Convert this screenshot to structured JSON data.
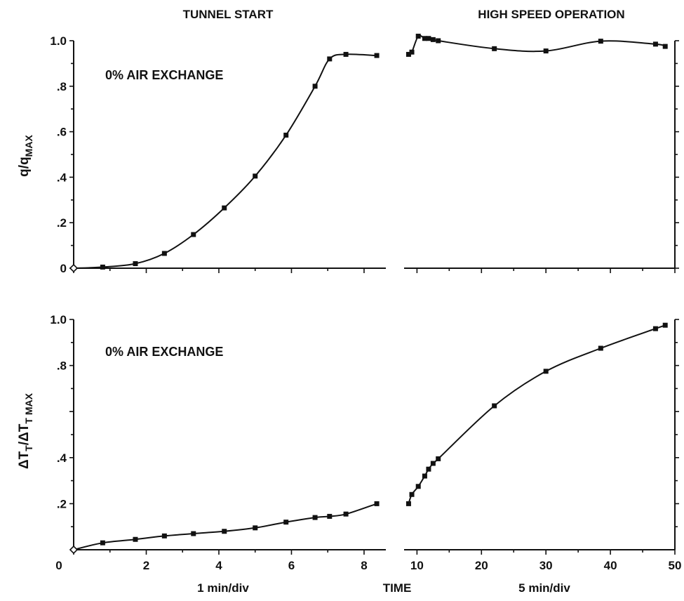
{
  "chart_data": [
    {
      "type": "line",
      "name": "top",
      "ylabel": "q/q",
      "ylabel_sub": "MAX",
      "annotation": "0% AIR EXCHANGE",
      "ylim": [
        0,
        1.0
      ],
      "yticks": [
        {
          "v": 0,
          "label": "0"
        },
        {
          "v": 0.2,
          "label": ".2"
        },
        {
          "v": 0.4,
          "label": ".4"
        },
        {
          "v": 0.6,
          "label": ".6"
        },
        {
          "v": 0.8,
          "label": ".8"
        },
        {
          "v": 1.0,
          "label": "1.0"
        }
      ],
      "left": {
        "xlim": [
          0,
          8.6
        ],
        "x": [
          0,
          0.8,
          1.7,
          2.5,
          3.3,
          4.15,
          5.0,
          5.85,
          6.65,
          7.05,
          7.5,
          8.35
        ],
        "y": [
          0,
          0.005,
          0.02,
          0.065,
          0.148,
          0.265,
          0.405,
          0.585,
          0.8,
          0.92,
          0.94,
          0.935
        ]
      },
      "right": {
        "xlim": [
          8,
          50
        ],
        "x": [
          8.7,
          9.2,
          10.2,
          11.2,
          11.8,
          12.5,
          13.3,
          22,
          30,
          38.5,
          47,
          48.5
        ],
        "y": [
          0.94,
          0.95,
          1.02,
          1.01,
          1.01,
          1.005,
          1.0,
          0.965,
          0.955,
          0.998,
          0.985,
          0.975
        ]
      }
    },
    {
      "type": "line",
      "name": "bottom",
      "ylabel": "ΔT",
      "ylabel_sub": "T",
      "ylabel_mid": "/ΔT",
      "ylabel_sub2": "T MAX",
      "annotation": "0% AIR EXCHANGE",
      "ylim": [
        0,
        1.0
      ],
      "yticks": [
        {
          "v": 0.2,
          "label": ".2"
        },
        {
          "v": 0.4,
          "label": ".4"
        },
        {
          "v": 0.6,
          "label": ""
        },
        {
          "v": 0.8,
          "label": ".8"
        },
        {
          "v": 1.0,
          "label": "1.0"
        }
      ],
      "left": {
        "xlim": [
          0,
          8.6
        ],
        "x": [
          0,
          0.8,
          1.7,
          2.5,
          3.3,
          4.15,
          5.0,
          5.85,
          6.65,
          7.05,
          7.5,
          8.35
        ],
        "y": [
          0,
          0.03,
          0.045,
          0.06,
          0.07,
          0.08,
          0.095,
          0.12,
          0.14,
          0.145,
          0.155,
          0.2
        ]
      },
      "right": {
        "xlim": [
          8,
          50
        ],
        "x": [
          8.7,
          9.2,
          10.2,
          11.2,
          11.8,
          12.5,
          13.3,
          22,
          30,
          38.5,
          47,
          48.5
        ],
        "y": [
          0.2,
          0.24,
          0.275,
          0.32,
          0.35,
          0.375,
          0.395,
          0.625,
          0.775,
          0.875,
          0.96,
          0.975
        ]
      }
    }
  ],
  "headers": {
    "left": "TUNNEL START",
    "right": "HIGH SPEED OPERATION"
  },
  "x_axis": {
    "left_ticks": [
      {
        "v": 0,
        "label": "0"
      },
      {
        "v": 2,
        "label": "2"
      },
      {
        "v": 4,
        "label": "4"
      },
      {
        "v": 6,
        "label": "6"
      },
      {
        "v": 8,
        "label": "8"
      }
    ],
    "right_ticks": [
      {
        "v": 10,
        "label": "10"
      },
      {
        "v": 20,
        "label": "20"
      },
      {
        "v": 30,
        "label": "30"
      },
      {
        "v": 40,
        "label": "40"
      },
      {
        "v": 50,
        "label": "50"
      }
    ],
    "left_unit": "1 min/div",
    "center_label": "TIME",
    "right_unit": "5 min/div"
  }
}
